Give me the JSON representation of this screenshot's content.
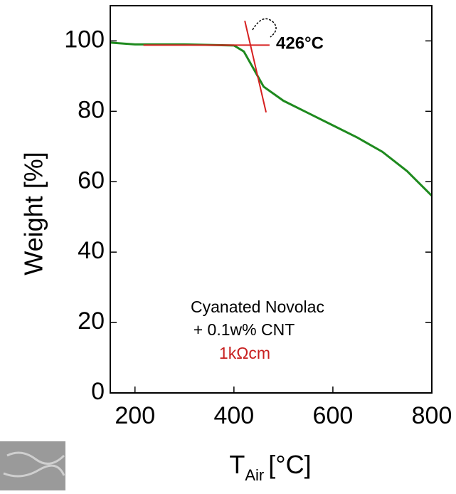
{
  "chart_data": {
    "type": "line",
    "y_label": "Weight [%]",
    "x_label": "T",
    "x_label_sub": "Air",
    "x_label_unit": "[°C]",
    "xlim": [
      150,
      800
    ],
    "ylim": [
      0,
      110
    ],
    "xticks": [
      200,
      400,
      600,
      800
    ],
    "yticks": [
      0,
      20,
      40,
      60,
      80,
      100
    ],
    "x": [
      150,
      200,
      300,
      400,
      420,
      440,
      460,
      480,
      500,
      550,
      600,
      650,
      700,
      750,
      800
    ],
    "series": [
      {
        "color": "#1e8a1e",
        "values": [
          99.5,
          99,
          99,
          98.7,
          97,
          92,
          87,
          85,
          83,
          79.5,
          76,
          72.5,
          68.5,
          63,
          56
        ]
      }
    ],
    "lines": [
      {
        "color": "#d62020",
        "x": [
          217,
          472
        ],
        "y": [
          98.8,
          98.8
        ]
      },
      {
        "color": "#d62020",
        "x": [
          422,
          465
        ],
        "y": [
          105.7,
          79.7
        ]
      }
    ],
    "annotation": "426°C",
    "label_lines": [
      "Cyanated Novolac",
      "+ 0.1w% CNT"
    ],
    "resistivity": "1kΩcm",
    "resistivity_color": "#c82020"
  }
}
